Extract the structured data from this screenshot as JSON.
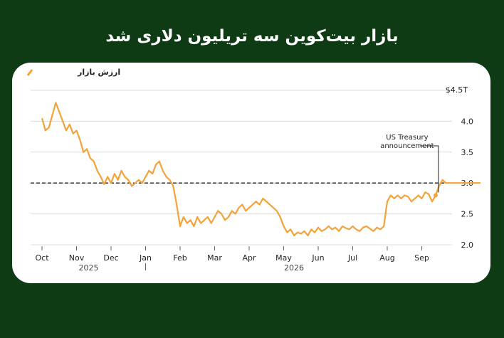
{
  "header": {
    "title": "بازار بیت‌کوین سه تریلیون دلاری شد"
  },
  "colors": {
    "background": "#0e3a14",
    "series": "#f4a23a",
    "accent": "#f4a23a"
  },
  "chart_data": {
    "type": "line",
    "title": "بازار بیت‌کوین سه تریلیون دلاری شد",
    "y_unit_label": "$4.5T",
    "y_ticks": [
      "4.0",
      "3.5",
      "3.0",
      "2.5",
      "2.0"
    ],
    "ylim": [
      2.0,
      4.5
    ],
    "x_ticks": [
      "Oct",
      "Nov",
      "Dec",
      "Jan",
      "Feb",
      "Mar",
      "Apr",
      "May",
      "Jun",
      "Jul",
      "Aug",
      "Sep"
    ],
    "years": [
      "2025",
      "2026"
    ],
    "grid": true,
    "legend_position": "top-left",
    "reference_line": 3.0,
    "annotation": {
      "text_line1": "US Treasury",
      "text_line2": "announcement",
      "x": 11.4
    },
    "series": [
      {
        "name": "ارزش بازار",
        "x": [
          0.0,
          0.1,
          0.2,
          0.3,
          0.4,
          0.5,
          0.6,
          0.7,
          0.8,
          0.9,
          1.0,
          1.1,
          1.2,
          1.3,
          1.4,
          1.5,
          1.6,
          1.7,
          1.8,
          1.9,
          2.0,
          2.1,
          2.2,
          2.3,
          2.4,
          2.5,
          2.6,
          2.7,
          2.8,
          2.9,
          3.0,
          3.1,
          3.2,
          3.3,
          3.4,
          3.5,
          3.6,
          3.7,
          3.8,
          3.9,
          4.0,
          4.1,
          4.2,
          4.3,
          4.4,
          4.5,
          4.6,
          4.7,
          4.8,
          4.9,
          5.0,
          5.1,
          5.2,
          5.3,
          5.4,
          5.5,
          5.6,
          5.7,
          5.8,
          5.9,
          6.0,
          6.1,
          6.2,
          6.3,
          6.4,
          6.5,
          6.6,
          6.7,
          6.8,
          6.9,
          7.0,
          7.1,
          7.2,
          7.3,
          7.4,
          7.5,
          7.6,
          7.7,
          7.8,
          7.9,
          8.0,
          8.1,
          8.2,
          8.3,
          8.4,
          8.5,
          8.6,
          8.7,
          8.8,
          8.9,
          9.0,
          9.1,
          9.2,
          9.3,
          9.4,
          9.5,
          9.6,
          9.7,
          9.8,
          9.9,
          10.0,
          10.1,
          10.2,
          10.3,
          10.4,
          10.5,
          10.6,
          10.7,
          10.8,
          10.9,
          11.0,
          11.1,
          11.2,
          11.3,
          11.4,
          11.5,
          11.6,
          11.7,
          11.8,
          11.9,
          12.0,
          12.1,
          12.2,
          12.3,
          12.4,
          12.5,
          12.6,
          12.7
        ],
        "values": [
          4.05,
          3.85,
          3.9,
          4.1,
          4.3,
          4.15,
          4.0,
          3.85,
          3.95,
          3.8,
          3.85,
          3.7,
          3.5,
          3.55,
          3.4,
          3.35,
          3.2,
          3.1,
          2.98,
          3.1,
          3.0,
          3.15,
          3.05,
          3.2,
          3.1,
          3.05,
          2.95,
          3.0,
          3.05,
          3.0,
          3.1,
          3.2,
          3.15,
          3.3,
          3.35,
          3.2,
          3.1,
          3.05,
          2.95,
          2.65,
          2.3,
          2.45,
          2.35,
          2.4,
          2.3,
          2.45,
          2.35,
          2.4,
          2.45,
          2.35,
          2.45,
          2.55,
          2.5,
          2.4,
          2.45,
          2.55,
          2.5,
          2.6,
          2.65,
          2.55,
          2.6,
          2.65,
          2.7,
          2.65,
          2.75,
          2.7,
          2.65,
          2.6,
          2.55,
          2.45,
          2.3,
          2.2,
          2.25,
          2.15,
          2.2,
          2.18,
          2.22,
          2.15,
          2.25,
          2.2,
          2.28,
          2.22,
          2.25,
          2.3,
          2.25,
          2.28,
          2.22,
          2.3,
          2.27,
          2.25,
          2.3,
          2.25,
          2.22,
          2.28,
          2.3,
          2.26,
          2.22,
          2.28,
          2.25,
          2.3,
          2.7,
          2.8,
          2.75,
          2.8,
          2.75,
          2.8,
          2.78,
          2.7,
          2.75,
          2.8,
          2.75,
          2.85,
          2.82,
          2.7,
          2.8,
          2.95,
          3.05,
          3.0,
          3.0,
          3.0,
          3.0,
          3.0,
          3.0,
          3.0,
          3.0,
          3.0,
          3.0,
          3.0
        ]
      }
    ]
  }
}
